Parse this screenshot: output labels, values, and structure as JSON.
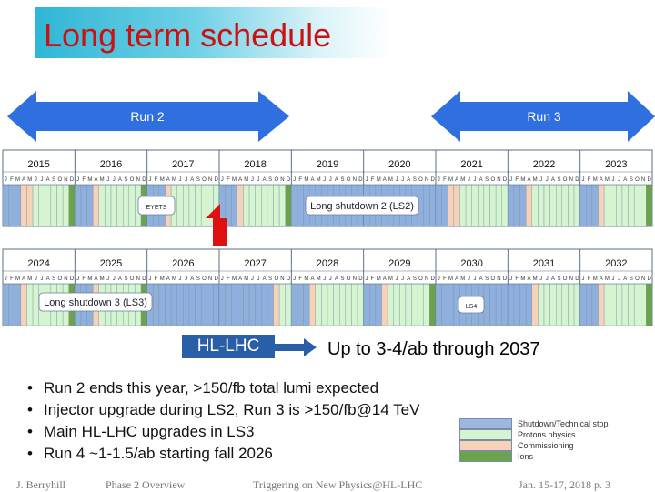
{
  "title": "Long term schedule",
  "runs": [
    {
      "label": "Run 2"
    },
    {
      "label": "Run 3"
    }
  ],
  "timeline_rows": [
    {
      "years": [
        "2015",
        "2016",
        "2017",
        "2018",
        "2019",
        "2020",
        "2021",
        "2022",
        "2023"
      ],
      "labels": [
        "EYETS",
        "Long shutdown 2 (LS2)"
      ]
    },
    {
      "years": [
        "2024",
        "2025",
        "2026",
        "2027",
        "2028",
        "2029",
        "2030",
        "2031",
        "2032"
      ],
      "labels": [
        "Long shutdown 3 (LS3)",
        "LS4"
      ]
    }
  ],
  "month_letters": [
    "J",
    "F",
    "M",
    "A",
    "M",
    "J",
    "J",
    "A",
    "S",
    "O",
    "N",
    "D"
  ],
  "hl": {
    "box_label": "HL-LHC",
    "text": "Up to 3-4/ab through 2037"
  },
  "bullets": [
    "Run 2 ends this year, >150/fb total lumi expected",
    "Injector upgrade during LS2, Run 3 is >150/fb@14 TeV",
    "Main HL-LHC upgrades in LS3",
    "Run 4 ~1-1.5/ab starting fall 2026"
  ],
  "legend": [
    {
      "label": "Shutdown/Technical stop",
      "color": "#9db7df"
    },
    {
      "label": "Protons physics",
      "color": "#d4f5cf"
    },
    {
      "label": "Commissioning",
      "color": "#f6d3b8"
    },
    {
      "label": "Ions",
      "color": "#6ba34b"
    }
  ],
  "footer": {
    "author": "J. Berryhill",
    "talk": "Phase 2 Overview",
    "event": "Triggering on New Physics@HL-LHC",
    "date_page": "Jan. 15-17, 2018  p. 3"
  },
  "colors": {
    "shutdown": "#8fb0dd",
    "physics": "#d4f5cf",
    "commissioning": "#f6d3b8",
    "ions": "#6ba34b",
    "arrow": "#2f6fe0",
    "title_red": "#cc1111"
  }
}
